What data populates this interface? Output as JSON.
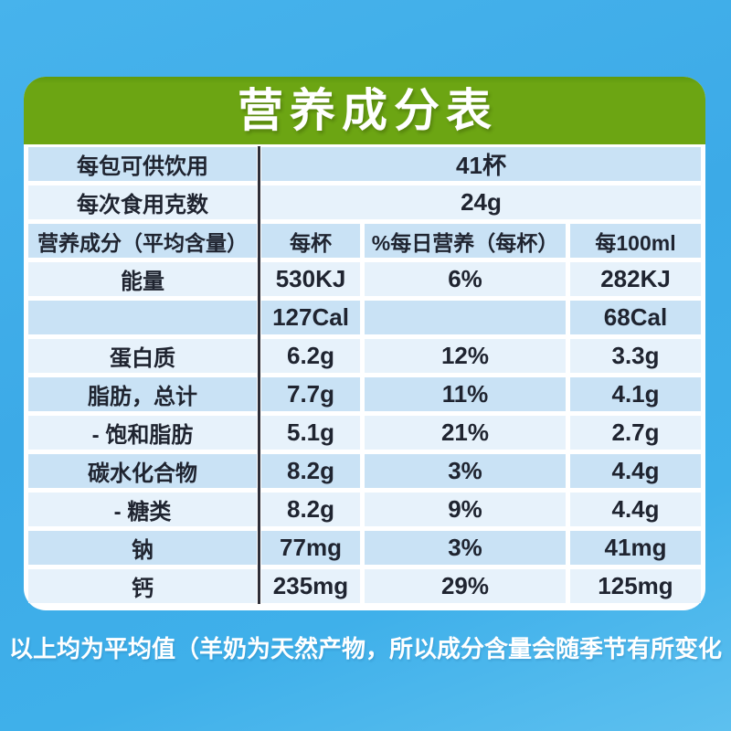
{
  "title": "营养成分表",
  "colors": {
    "background_blue": "#3fafe9",
    "header_green": "#6ca513",
    "row_shade_dark": "#c9e2f5",
    "row_shade_light": "#e7f2fb",
    "divider_line": "#2e2e38",
    "text_dark": "#1f2430",
    "text_white": "#ffffff"
  },
  "chart_data": {
    "type": "table",
    "title": "营养成分表",
    "info_rows": [
      {
        "label": "每包可供饮用",
        "value": "41杯"
      },
      {
        "label": "每次食用克数",
        "value": "24g"
      }
    ],
    "columns": [
      "营养成分（平均含量）",
      "每杯",
      "%每日营养（每杯）",
      "每100ml"
    ],
    "rows": [
      {
        "label": "能量",
        "per_cup": "530KJ",
        "daily_pct": "6%",
        "per_100ml": "282KJ"
      },
      {
        "label": "",
        "per_cup": "127Cal",
        "daily_pct": "",
        "per_100ml": "68Cal"
      },
      {
        "label": "蛋白质",
        "per_cup": "6.2g",
        "daily_pct": "12%",
        "per_100ml": "3.3g"
      },
      {
        "label": "脂肪，总计",
        "per_cup": "7.7g",
        "daily_pct": "11%",
        "per_100ml": "4.1g"
      },
      {
        "label": "- 饱和脂肪",
        "per_cup": "5.1g",
        "daily_pct": "21%",
        "per_100ml": "2.7g"
      },
      {
        "label": "碳水化合物",
        "per_cup": "8.2g",
        "daily_pct": "3%",
        "per_100ml": "4.4g"
      },
      {
        "label": "- 糖类",
        "per_cup": "8.2g",
        "daily_pct": "9%",
        "per_100ml": "4.4g"
      },
      {
        "label": "钠",
        "per_cup": "77mg",
        "daily_pct": "3%",
        "per_100ml": "41mg"
      },
      {
        "label": "钙",
        "per_cup": "235mg",
        "daily_pct": "29%",
        "per_100ml": "125mg"
      }
    ]
  },
  "footnote": "以上均为平均值（羊奶为天然产物，所以成分含量会随季节有所变化"
}
